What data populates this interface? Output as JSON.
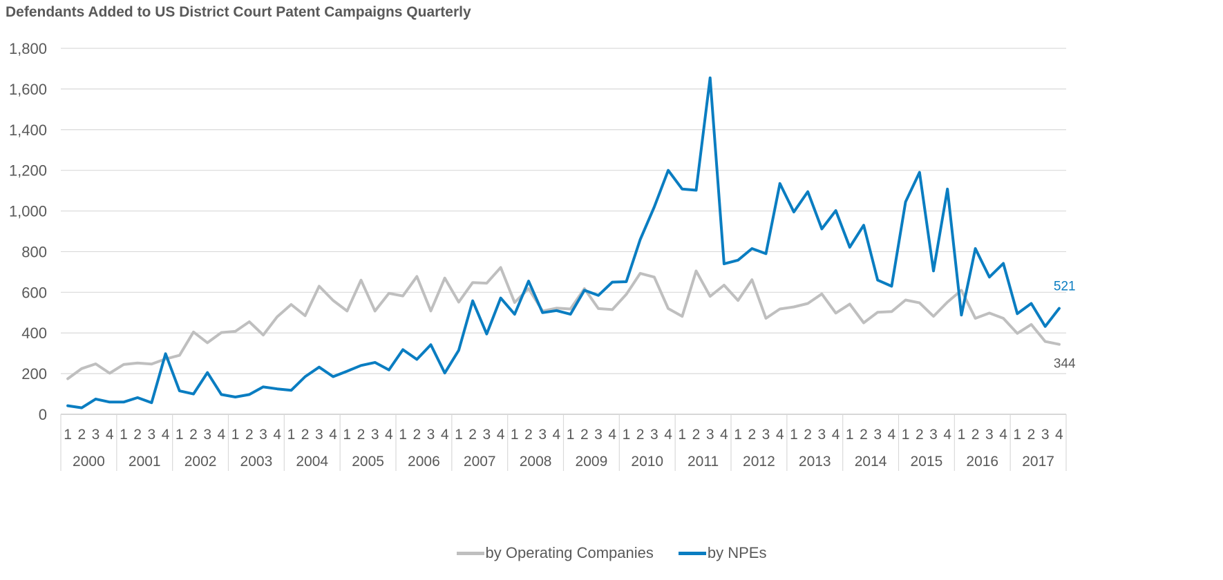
{
  "chart_data": {
    "type": "line",
    "title": "Defendants Added to US District Court Patent Campaigns Quarterly",
    "xlabel": "",
    "ylabel": "",
    "ylim": [
      0,
      1800
    ],
    "yticks": [
      0,
      200,
      400,
      600,
      800,
      1000,
      1200,
      1400,
      1600,
      1800
    ],
    "ytick_labels": [
      "0",
      "200",
      "400",
      "600",
      "800",
      "1,000",
      "1,200",
      "1,400",
      "1,600",
      "1,800"
    ],
    "years": [
      "2000",
      "2001",
      "2002",
      "2003",
      "2004",
      "2005",
      "2006",
      "2007",
      "2008",
      "2009",
      "2010",
      "2011",
      "2012",
      "2013",
      "2014",
      "2015",
      "2016",
      "2017"
    ],
    "quarters": [
      "1",
      "2",
      "3",
      "4"
    ],
    "grid": "horizontal",
    "legend_position": "bottom",
    "series": [
      {
        "name": "by Operating Companies",
        "color": "#BFBFBF",
        "end_label": "344",
        "values": [
          175,
          225,
          248,
          202,
          245,
          252,
          247,
          272,
          290,
          405,
          352,
          402,
          408,
          455,
          390,
          480,
          540,
          485,
          630,
          560,
          508,
          660,
          508,
          595,
          582,
          678,
          508,
          670,
          552,
          648,
          645,
          722,
          550,
          618,
          508,
          522,
          518,
          618,
          520,
          515,
          590,
          693,
          675,
          520,
          482,
          705,
          580,
          635,
          560,
          662,
          472,
          518,
          528,
          545,
          592,
          498,
          542,
          450,
          502,
          505,
          562,
          548,
          482,
          552,
          610,
          472,
          498,
          472,
          398,
          442,
          358,
          344
        ]
      },
      {
        "name": "by NPEs",
        "color": "#0A7DC1",
        "end_label": "521",
        "values": [
          42,
          32,
          75,
          60,
          60,
          82,
          57,
          298,
          115,
          100,
          205,
          97,
          85,
          97,
          135,
          125,
          118,
          185,
          232,
          185,
          212,
          240,
          255,
          218,
          318,
          270,
          342,
          203,
          315,
          558,
          395,
          572,
          492,
          655,
          500,
          510,
          492,
          610,
          585,
          650,
          652,
          860,
          1020,
          1200,
          1108,
          1102,
          1655,
          740,
          758,
          815,
          790,
          1135,
          995,
          1095,
          912,
          1002,
          822,
          930,
          660,
          630,
          1045,
          1190,
          705,
          1108,
          488,
          815,
          675,
          742,
          495,
          545,
          432,
          521
        ]
      }
    ]
  }
}
